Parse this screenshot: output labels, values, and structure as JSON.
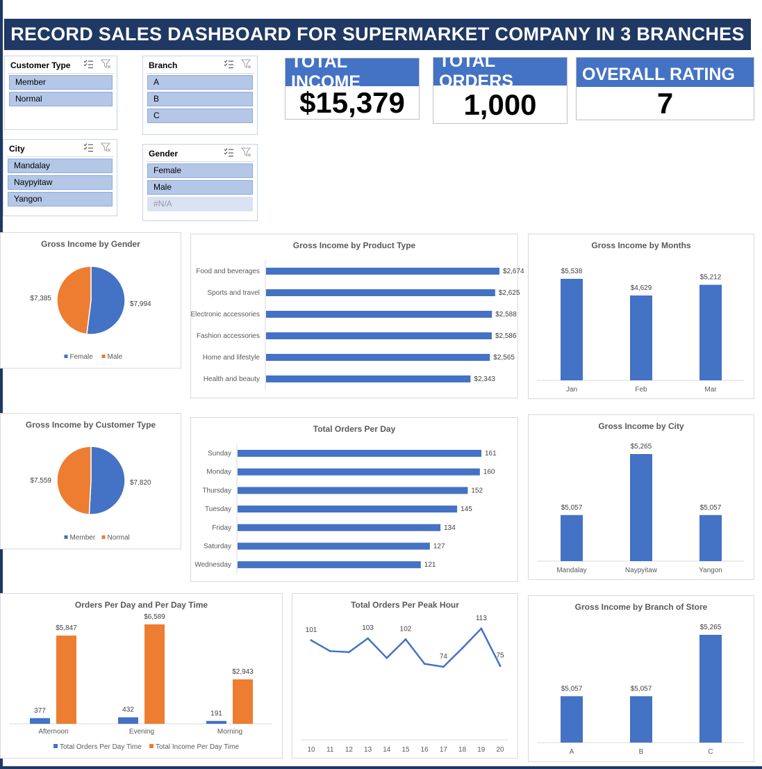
{
  "title": "RECORD SALES DASHBOARD FOR SUPERMARKET COMPANY IN 3 BRANCHES",
  "colors": {
    "primary": "#4472c4",
    "secondary": "#ed7d31",
    "navy": "#1f3864",
    "slicer_item": "#b4c7e7"
  },
  "slicers": [
    {
      "name": "customer-type",
      "header": "Customer Type",
      "items": [
        "Member",
        "Normal"
      ]
    },
    {
      "name": "branch",
      "header": "Branch",
      "items": [
        "A",
        "B",
        "C"
      ]
    },
    {
      "name": "city",
      "header": "City",
      "items": [
        "Mandalay",
        "Naypyitaw",
        "Yangon"
      ]
    },
    {
      "name": "gender",
      "header": "Gender",
      "items": [
        "Female",
        "Male",
        "#N/A"
      ]
    }
  ],
  "kpis": [
    {
      "name": "total-income",
      "label": "TOTAL INCOME",
      "value": "$15,379"
    },
    {
      "name": "total-orders",
      "label": "TOTAL ORDERS",
      "value": "1,000"
    },
    {
      "name": "overall-rating",
      "label": "OVERALL RATING",
      "value": "7"
    }
  ],
  "chart_data": [
    {
      "id": "gender",
      "type": "pie",
      "title": "Gross Income by Gender",
      "categories": [
        "Female",
        "Male"
      ],
      "values": [
        7994,
        7385
      ],
      "labels": [
        "$7,994",
        "$7,385"
      ]
    },
    {
      "id": "product",
      "type": "bar",
      "title": "Gross Income by Product Type",
      "orientation": "horizontal",
      "categories": [
        "Food and beverages",
        "Sports and travel",
        "Electronic accessories",
        "Fashion accessories",
        "Home and lifestyle",
        "Health and beauty"
      ],
      "values": [
        2674,
        2625,
        2588,
        2586,
        2565,
        2343
      ],
      "labels": [
        "$2,674",
        "$2,625",
        "$2,588",
        "$2,586",
        "$2,565",
        "$2,343"
      ]
    },
    {
      "id": "months",
      "type": "bar",
      "title": "Gross Income by Months",
      "categories": [
        "Jan",
        "Feb",
        "Mar"
      ],
      "values": [
        5538,
        4629,
        5212
      ],
      "labels": [
        "$5,538",
        "$4,629",
        "$5,212"
      ]
    },
    {
      "id": "customer",
      "type": "pie",
      "title": "Gross Income by Customer Type",
      "categories": [
        "Member",
        "Normal"
      ],
      "values": [
        7820,
        7559
      ],
      "labels": [
        "$7,820",
        "$7,559"
      ]
    },
    {
      "id": "days",
      "type": "bar",
      "title": "Total Orders Per Day",
      "orientation": "horizontal",
      "categories": [
        "Sunday",
        "Monday",
        "Thursday",
        "Tuesday",
        "Friday",
        "Saturday",
        "Wednesday"
      ],
      "values": [
        161,
        160,
        152,
        145,
        134,
        127,
        121
      ],
      "labels": [
        "161",
        "160",
        "152",
        "145",
        "134",
        "127",
        "121"
      ]
    },
    {
      "id": "city",
      "type": "bar",
      "title": "Gross Income by City",
      "categories": [
        "Mandalay",
        "Naypyitaw",
        "Yangon"
      ],
      "values": [
        5057,
        5265,
        5057
      ],
      "labels": [
        "$5,057",
        "$5,265",
        "$5,057"
      ]
    },
    {
      "id": "daytime",
      "type": "bar",
      "title": "Orders Per Day and Per Day Time",
      "categories": [
        "Afternoon",
        "Evening",
        "Morning"
      ],
      "series": [
        {
          "name": "Total Orders Per Day Time",
          "values": [
            377,
            432,
            191
          ],
          "labels": [
            "377",
            "432",
            "191"
          ]
        },
        {
          "name": "Total Income Per Day Time",
          "values": [
            5847,
            6589,
            2943
          ],
          "labels": [
            "$5,847",
            "$6,589",
            "$2,943"
          ]
        }
      ]
    },
    {
      "id": "hours",
      "type": "line",
      "title": "Total Orders Per Peak Hour",
      "x": [
        10,
        11,
        12,
        13,
        14,
        15,
        16,
        17,
        18,
        19,
        20
      ],
      "y": [
        101,
        90,
        89,
        103,
        83,
        102,
        77,
        74,
        93,
        113,
        75
      ],
      "labels": [
        "101",
        "",
        "",
        "103",
        "",
        "102",
        "",
        "74",
        "",
        "113",
        "75"
      ]
    },
    {
      "id": "branch",
      "type": "bar",
      "title": "Gross Income by Branch of Store",
      "categories": [
        "A",
        "B",
        "C"
      ],
      "values": [
        5057,
        5057,
        5265
      ],
      "labels": [
        "$5,057",
        "$5,057",
        "$5,265"
      ]
    }
  ]
}
